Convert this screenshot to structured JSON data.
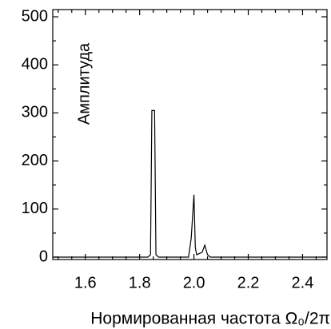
{
  "chart_data": {
    "type": "line",
    "x_label": "Нормированная частота Ω₀/2π",
    "y_label": "Амплитуда",
    "series": [
      {
        "color": "#000000",
        "x": [
          1.48,
          1.83,
          1.84,
          1.845,
          1.855,
          1.86,
          1.87,
          1.98,
          1.99,
          2.0,
          2.005,
          2.01,
          2.03,
          2.04,
          2.05,
          2.06,
          2.49
        ],
        "values": [
          0,
          0,
          5,
          305,
          305,
          5,
          0,
          0,
          40,
          130,
          20,
          5,
          10,
          25,
          5,
          0,
          0
        ]
      }
    ],
    "xlim": [
      1.48,
      2.49
    ],
    "xticks": [
      1.6,
      1.8,
      {
        "value": 2.0,
        "label": "2.0"
      },
      2.2,
      2.4
    ],
    "ylim": [
      -5,
      515
    ],
    "yticks": [
      0,
      100,
      200,
      300,
      400,
      500
    ]
  }
}
